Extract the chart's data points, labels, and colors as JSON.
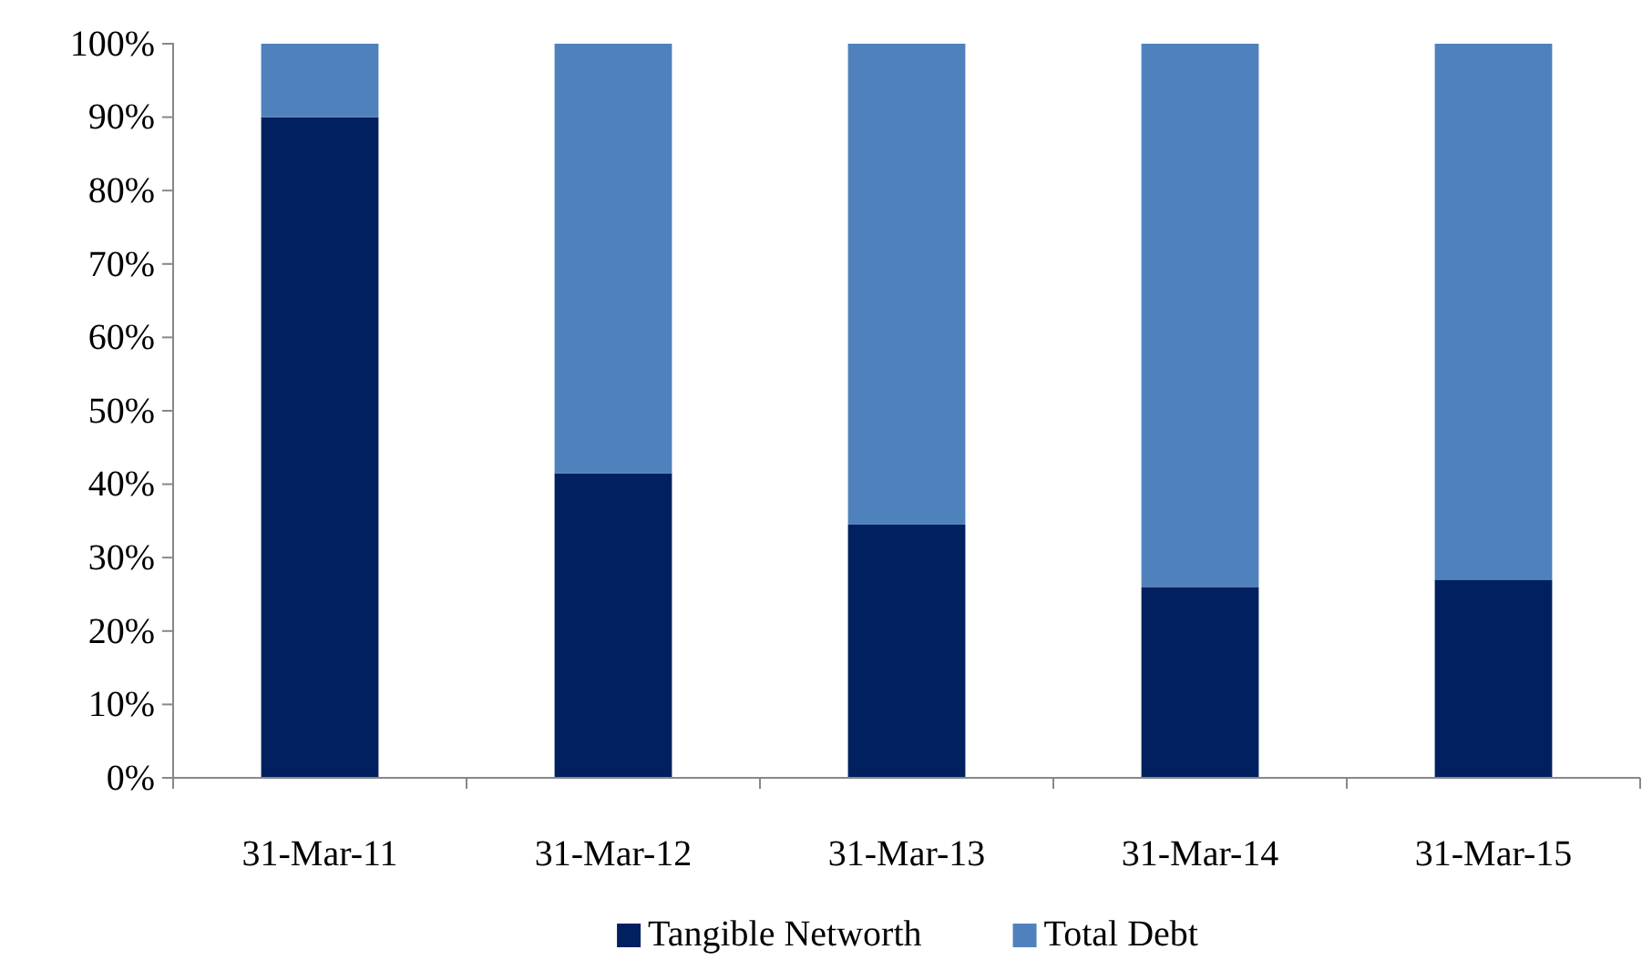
{
  "chart_data": {
    "type": "bar",
    "stacked": true,
    "categories": [
      "31-Mar-11",
      "31-Mar-12",
      "31-Mar-13",
      "31-Mar-14",
      "31-Mar-15"
    ],
    "series": [
      {
        "name": "Tangible Networth",
        "color": "#002060",
        "values": [
          90,
          41.5,
          34.5,
          26,
          27
        ]
      },
      {
        "name": "Total Debt",
        "color": "#4f81bd",
        "values": [
          10,
          58.5,
          65.5,
          74,
          73
        ]
      }
    ],
    "ylim": [
      0,
      100
    ],
    "yticks": [
      {
        "value": 0,
        "label": "0%"
      },
      {
        "value": 10,
        "label": "10%"
      },
      {
        "value": 20,
        "label": "20%"
      },
      {
        "value": 30,
        "label": "30%"
      },
      {
        "value": 40,
        "label": "40%"
      },
      {
        "value": 50,
        "label": "50%"
      },
      {
        "value": 60,
        "label": "60%"
      },
      {
        "value": 70,
        "label": "70%"
      },
      {
        "value": 80,
        "label": "80%"
      },
      {
        "value": 90,
        "label": "90%"
      },
      {
        "value": 100,
        "label": "100%"
      }
    ],
    "grid": false,
    "legend": "bottom"
  }
}
